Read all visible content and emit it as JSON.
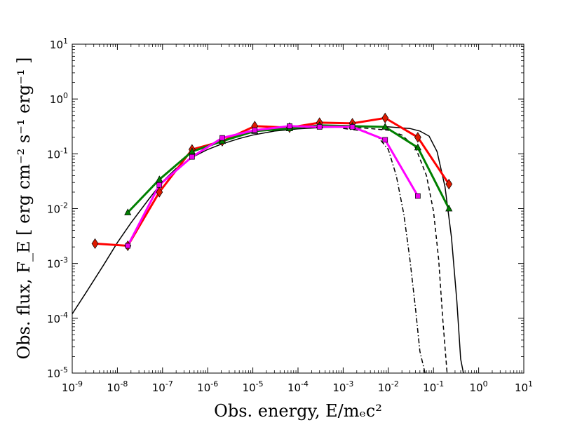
{
  "chart_data": {
    "type": "line",
    "title": "",
    "xlabel": "Obs. energy, E/mₑc²",
    "ylabel": "Obs. flux, F_E [ erg cm⁻² s⁻¹ erg⁻¹ ]",
    "xscale": "log",
    "yscale": "log",
    "xlim_exp": [
      -9,
      1
    ],
    "ylim_exp": [
      -5,
      1
    ],
    "x_tick_exponents": [
      "-9",
      "-8",
      "-7",
      "-6",
      "-5",
      "-4",
      "-3",
      "-2",
      "-1",
      "0",
      "1"
    ],
    "y_tick_exponents": [
      "-5",
      "-4",
      "-3",
      "-2",
      "-1",
      "0",
      "1"
    ],
    "tick_base": "10",
    "grid": false,
    "legend": "none",
    "series": [
      {
        "style": "solid",
        "color": "#000000",
        "x": [
          7.5e-10,
          1e-09,
          2e-09,
          5e-09,
          1e-08,
          2e-08,
          5e-08,
          1e-07,
          2e-07,
          5e-07,
          1e-06,
          2e-06,
          5e-06,
          1e-05,
          3e-05,
          0.0001,
          0.0003,
          0.001,
          0.003,
          0.01,
          0.03,
          0.05,
          0.08,
          0.12,
          0.18,
          0.25,
          0.33,
          0.4,
          0.46
        ],
        "y": [
          7e-05,
          0.00012,
          0.00029,
          0.00095,
          0.0024,
          0.0055,
          0.015,
          0.031,
          0.054,
          0.09,
          0.12,
          0.15,
          0.19,
          0.22,
          0.26,
          0.285,
          0.3,
          0.31,
          0.315,
          0.31,
          0.29,
          0.26,
          0.21,
          0.11,
          0.025,
          0.003,
          0.0002,
          1.8e-05,
          1e-05
        ]
      },
      {
        "style": "dashed",
        "color": "#000000",
        "x": [
          0.001,
          0.003,
          0.01,
          0.02,
          0.04,
          0.07,
          0.1,
          0.13,
          0.16,
          0.2
        ],
        "y": [
          0.3,
          0.295,
          0.27,
          0.22,
          0.13,
          0.04,
          0.009,
          0.0012,
          0.0001,
          1e-05
        ]
      },
      {
        "style": "dashdot",
        "color": "#000000",
        "x": [
          0.001,
          0.003,
          0.006,
          0.01,
          0.015,
          0.022,
          0.03,
          0.04,
          0.05,
          0.065
        ],
        "y": [
          0.29,
          0.26,
          0.2,
          0.12,
          0.04,
          0.008,
          0.0012,
          0.00015,
          2.5e-05,
          1e-05
        ]
      },
      {
        "color": "#ff0000",
        "marker": "diamond",
        "marker_color": "#dd1a00",
        "x": [
          3.2e-09,
          1.7e-08,
          8.5e-08,
          4.5e-07,
          2.1e-06,
          1.1e-05,
          6.5e-05,
          0.0003,
          0.0016,
          0.0085,
          0.045,
          0.22
        ],
        "y": [
          0.0023,
          0.0021,
          0.02,
          0.12,
          0.17,
          0.32,
          0.3,
          0.37,
          0.36,
          0.45,
          0.2,
          0.028
        ]
      },
      {
        "color": "#008000",
        "marker": "triangle",
        "marker_color": "#008000",
        "x": [
          1.7e-08,
          8.5e-08,
          4.5e-07,
          2.1e-06,
          1.1e-05,
          6.5e-05,
          0.0003,
          0.0016,
          0.0085,
          0.045,
          0.22
        ],
        "y": [
          0.0085,
          0.034,
          0.11,
          0.17,
          0.26,
          0.29,
          0.33,
          0.32,
          0.31,
          0.13,
          0.01
        ]
      },
      {
        "color": "#ff00ff",
        "marker": "square",
        "marker_color": "#ee00ee",
        "x": [
          1.7e-08,
          8.5e-08,
          4.5e-07,
          2.1e-06,
          1.1e-05,
          6.5e-05,
          0.0003,
          0.0016,
          0.0085,
          0.045
        ],
        "y": [
          0.0021,
          0.027,
          0.088,
          0.195,
          0.27,
          0.32,
          0.31,
          0.31,
          0.18,
          0.017
        ]
      }
    ]
  }
}
